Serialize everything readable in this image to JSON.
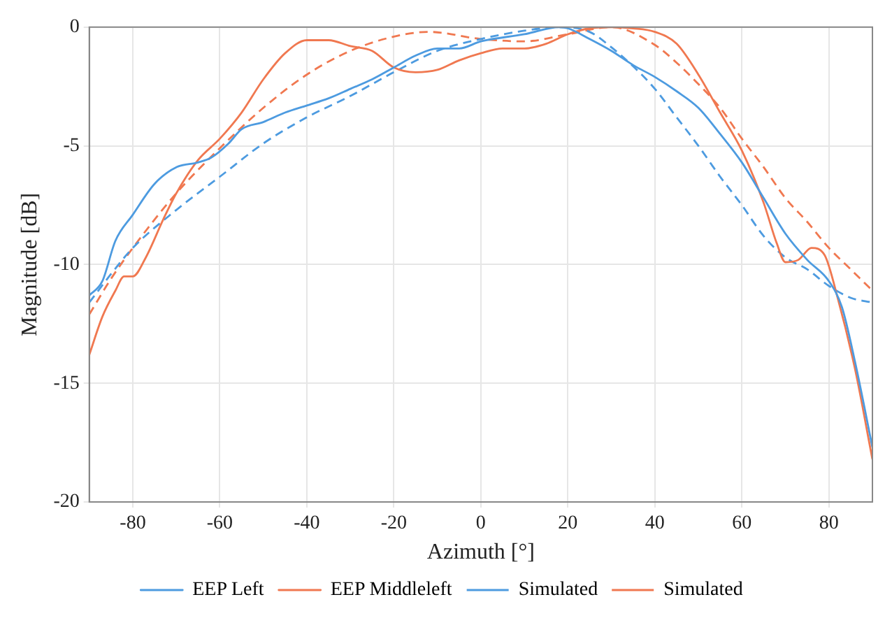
{
  "chart_data": {
    "type": "line",
    "xlabel": "Azimuth [°]",
    "ylabel": "Magnitude [dB]",
    "xlim": [
      -90,
      90
    ],
    "xticks": [
      -80,
      -60,
      -40,
      -20,
      0,
      20,
      40,
      60,
      80
    ],
    "ylim": [
      -20,
      0
    ],
    "yticks": [
      -20,
      -15,
      -10,
      -5,
      0
    ],
    "grid": true,
    "legend": "bottom",
    "marker": "none",
    "series": [
      {
        "name": "EEP Left",
        "color": "#4d9be0",
        "line_style": "solid",
        "x": [
          -90,
          -87,
          -84,
          -80,
          -75,
          -70,
          -65,
          -62,
          -58,
          -55,
          -50,
          -45,
          -40,
          -35,
          -30,
          -25,
          -20,
          -15,
          -10,
          -5,
          0,
          10,
          18,
          20,
          25,
          30,
          35,
          40,
          45,
          50,
          55,
          60,
          65,
          70,
          75,
          80,
          83,
          86,
          90
        ],
        "values": [
          -11.3,
          -10.7,
          -9.0,
          -7.9,
          -6.6,
          -5.9,
          -5.7,
          -5.5,
          -4.9,
          -4.3,
          -4.0,
          -3.6,
          -3.3,
          -3.0,
          -2.6,
          -2.2,
          -1.7,
          -1.2,
          -0.9,
          -0.9,
          -0.6,
          -0.3,
          0,
          -0.05,
          -0.5,
          -1.0,
          -1.6,
          -2.1,
          -2.7,
          -3.4,
          -4.5,
          -5.7,
          -7.2,
          -8.7,
          -9.8,
          -10.7,
          -11.8,
          -14.1,
          -17.7
        ]
      },
      {
        "name": "EEP Middleleft",
        "color": "#f07850",
        "line_style": "solid",
        "x": [
          -90,
          -87,
          -84,
          -82,
          -80,
          -77,
          -73,
          -70,
          -65,
          -60,
          -55,
          -50,
          -45,
          -40,
          -35,
          -30,
          -25,
          -20,
          -15,
          -10,
          -5,
          0,
          5,
          10,
          15,
          20,
          25,
          30,
          35,
          40,
          45,
          50,
          55,
          60,
          65,
          68,
          70,
          73,
          76,
          79,
          82,
          86,
          90
        ],
        "values": [
          -13.8,
          -12.2,
          -11.1,
          -10.5,
          -10.5,
          -9.7,
          -8.1,
          -7.0,
          -5.6,
          -4.7,
          -3.6,
          -2.2,
          -1.1,
          -0.55,
          -0.55,
          -0.8,
          -1.0,
          -1.7,
          -1.9,
          -1.8,
          -1.4,
          -1.1,
          -0.9,
          -0.9,
          -0.7,
          -0.3,
          -0.05,
          0,
          -0.05,
          -0.2,
          -0.7,
          -2.0,
          -3.6,
          -5.2,
          -7.4,
          -9.1,
          -9.9,
          -9.8,
          -9.3,
          -9.6,
          -11.4,
          -14.4,
          -18.2
        ]
      },
      {
        "name": "Simulated",
        "color": "#4d9be0",
        "line_style": "dashed",
        "x": [
          -90,
          -85,
          -80,
          -70,
          -60,
          -50,
          -40,
          -30,
          -20,
          -10,
          0,
          10,
          18,
          25,
          30,
          35,
          40,
          45,
          50,
          55,
          60,
          65,
          70,
          75,
          80,
          85,
          90
        ],
        "values": [
          -11.6,
          -10.4,
          -9.3,
          -7.7,
          -6.3,
          -4.9,
          -3.8,
          -2.9,
          -1.9,
          -1.0,
          -0.5,
          -0.15,
          0,
          -0.2,
          -0.85,
          -1.65,
          -2.6,
          -3.8,
          -5.0,
          -6.3,
          -7.5,
          -8.8,
          -9.7,
          -10.2,
          -10.9,
          -11.4,
          -11.6
        ]
      },
      {
        "name": "Simulated",
        "color": "#f07850",
        "line_style": "dashed",
        "x": [
          -90,
          -85,
          -80,
          -70,
          -60,
          -50,
          -40,
          -30,
          -20,
          -12,
          0,
          10,
          20,
          30,
          40,
          45,
          50,
          55,
          60,
          65,
          70,
          75,
          80,
          85,
          90
        ],
        "values": [
          -12.1,
          -10.6,
          -9.3,
          -7.0,
          -5.1,
          -3.4,
          -2.0,
          -1.0,
          -0.4,
          -0.2,
          -0.5,
          -0.6,
          -0.3,
          0,
          -0.75,
          -1.5,
          -2.4,
          -3.4,
          -4.7,
          -5.9,
          -7.2,
          -8.2,
          -9.3,
          -10.2,
          -11.1
        ]
      }
    ]
  }
}
